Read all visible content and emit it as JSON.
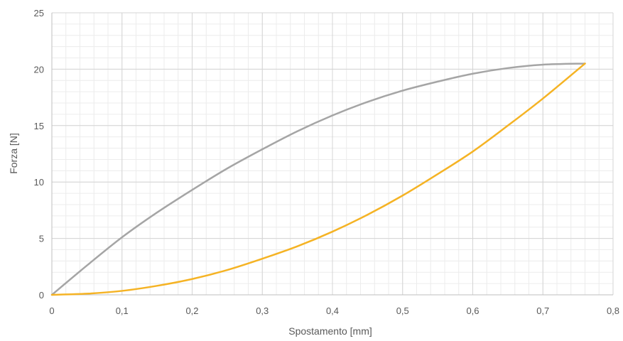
{
  "chart_data": {
    "type": "line",
    "xlabel": "Spostamento [mm]",
    "ylabel": "Forza [N]",
    "xlim": [
      0,
      0.8
    ],
    "ylim": [
      0,
      25
    ],
    "x_ticks": [
      "0",
      "0,1",
      "0,2",
      "0,3",
      "0,4",
      "0,5",
      "0,6",
      "0,7",
      "0,8"
    ],
    "y_ticks": [
      "0",
      "5",
      "10",
      "15",
      "20",
      "25"
    ],
    "grid": {
      "major": true,
      "minor": true,
      "x_minor_step": 0.02,
      "y_minor_step": 1
    },
    "legend": "none",
    "series": [
      {
        "color": "#a5a5a5",
        "x": [
          0,
          0.05,
          0.1,
          0.15,
          0.2,
          0.25,
          0.3,
          0.35,
          0.4,
          0.45,
          0.5,
          0.55,
          0.6,
          0.65,
          0.7,
          0.76
        ],
        "y": [
          0,
          2.6,
          5.1,
          7.3,
          9.3,
          11.2,
          12.9,
          14.5,
          15.9,
          17.1,
          18.1,
          18.9,
          19.6,
          20.1,
          20.4,
          20.5
        ]
      },
      {
        "color": "#f5b324",
        "x": [
          0,
          0.05,
          0.1,
          0.15,
          0.2,
          0.25,
          0.3,
          0.35,
          0.4,
          0.45,
          0.5,
          0.55,
          0.6,
          0.65,
          0.7,
          0.76
        ],
        "y": [
          0,
          0.1,
          0.35,
          0.8,
          1.4,
          2.2,
          3.2,
          4.3,
          5.6,
          7.1,
          8.8,
          10.7,
          12.7,
          15.0,
          17.4,
          20.5
        ]
      }
    ]
  }
}
